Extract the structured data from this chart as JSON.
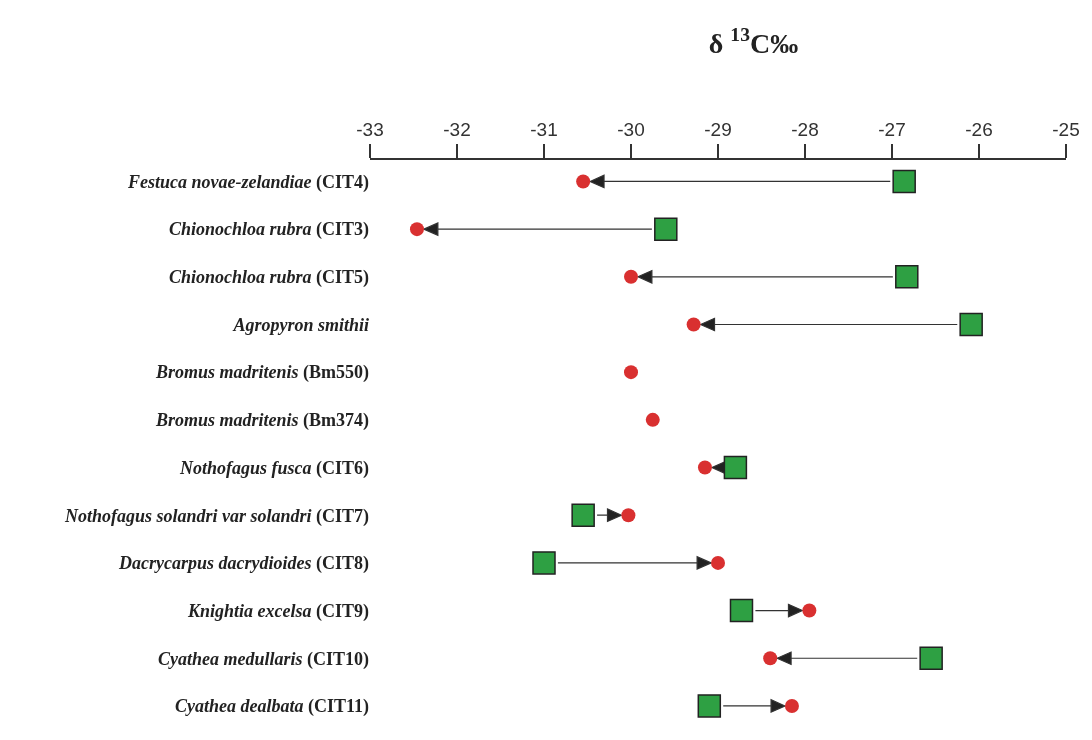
{
  "chart_data": {
    "type": "scatter",
    "title": "δ $^{13}$C‰",
    "orientation": "horizontal",
    "categories": [
      "Festuca novae-zelandiae (CIT4)",
      "Chionochloa rubra (CIT3)",
      "Chionochloa rubra (CIT5)",
      "Agropyron smithii",
      "Bromus madritenis (Bm550)",
      "Bromus madritenis (Bm374)",
      "Nothofagus fusca (CIT6)",
      "Nothofagus solandri var solandri (CIT7)",
      "Dacrycarpus dacrydioides (CIT8)",
      "Knightia excelsa (CIT9)",
      "Cyathea medullaris (CIT10)",
      "Cyathea dealbata (CIT11)"
    ],
    "series": [
      {
        "color": "#2ea043",
        "marker": "square",
        "values": [
          -26.86,
          -29.6,
          -26.83,
          -26.09,
          null,
          null,
          -28.8,
          -30.55,
          -31.0,
          -28.73,
          -26.55,
          -29.1
        ]
      },
      {
        "color": "#d93030",
        "marker": "circle",
        "values": [
          -30.55,
          -32.46,
          -30.0,
          -29.28,
          -30.0,
          -29.75,
          -29.15,
          -30.03,
          -29.0,
          -27.95,
          -28.4,
          -28.15
        ]
      }
    ],
    "xlim": [
      -33,
      -25
    ],
    "xticks": [
      -33,
      -32,
      -31,
      -30,
      -29,
      -28,
      -27,
      -26,
      -25
    ]
  }
}
